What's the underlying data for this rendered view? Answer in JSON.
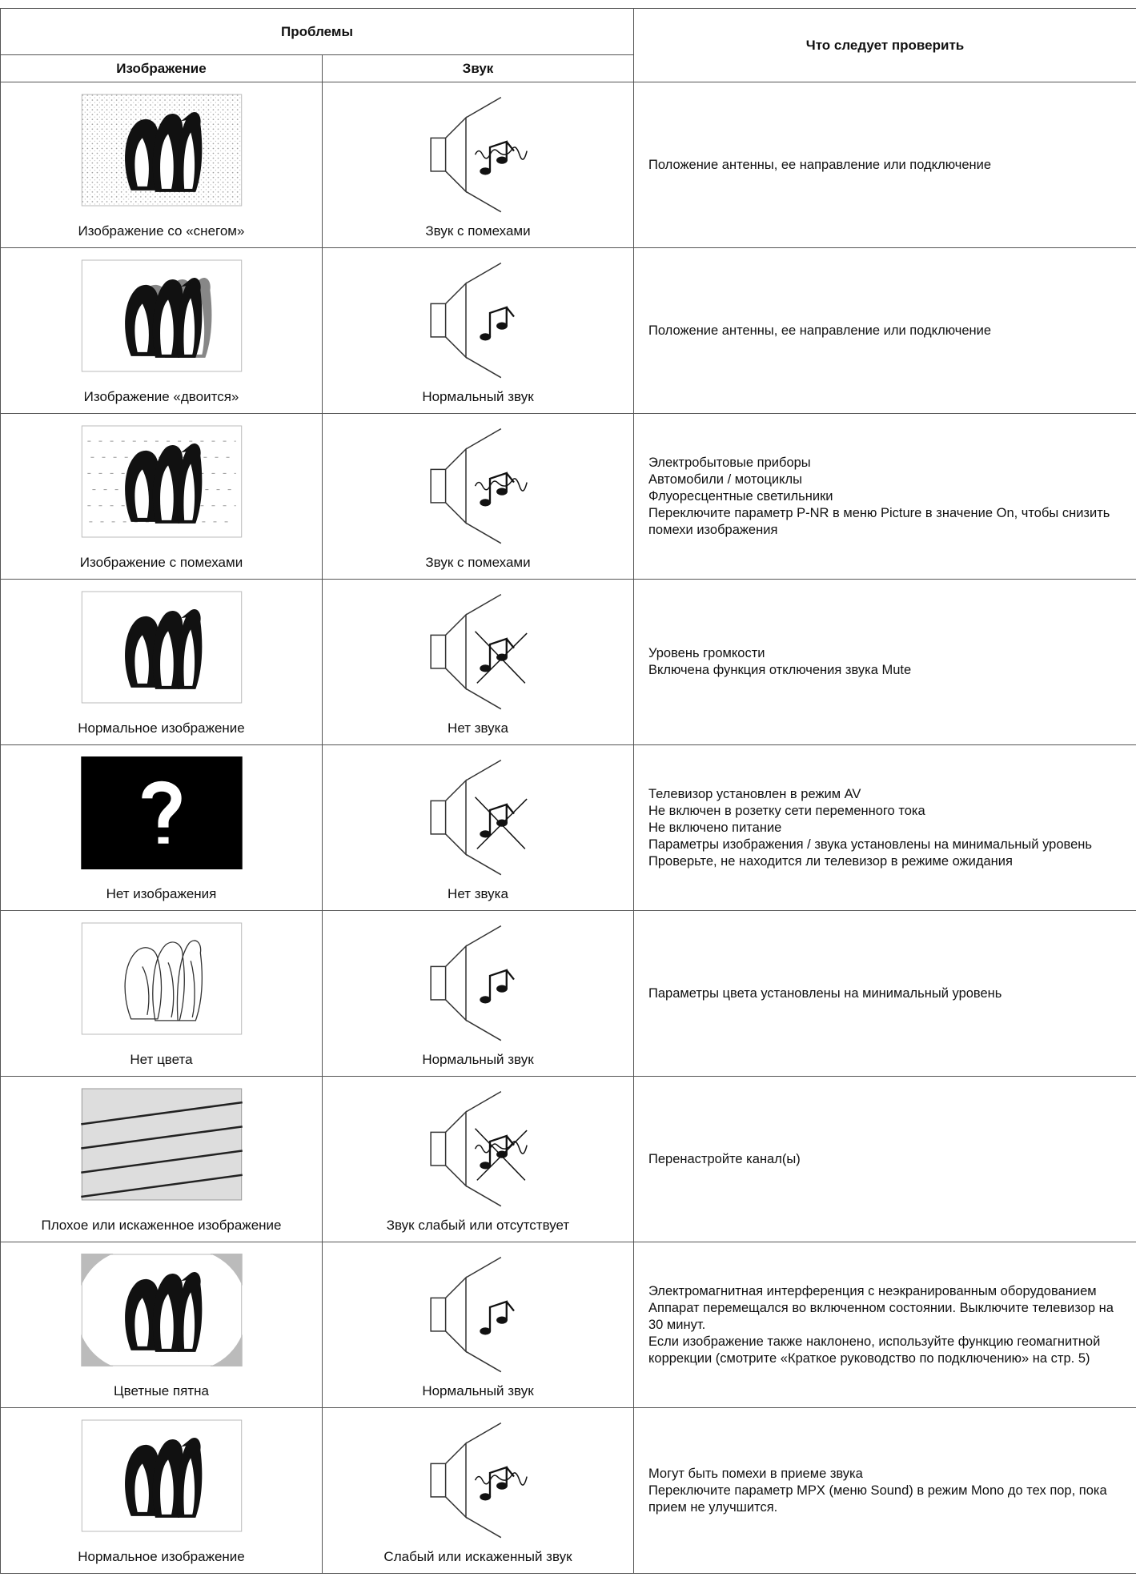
{
  "header": {
    "title": "Проблемы",
    "picture": "Изображение",
    "sound": "Звук",
    "check": "Что следует проверить"
  },
  "rows": [
    {
      "picture": "Изображение со «снегом»",
      "sound": "Звук с помехами",
      "checks": [
        "Положение антенны, ее направление или подключение"
      ]
    },
    {
      "picture": "Изображение «двоится»",
      "sound": "Нормальный звук",
      "checks": [
        "Положение антенны, ее направление или подключение"
      ]
    },
    {
      "picture": "Изображение с помехами",
      "sound": "Звук с помехами",
      "checks": [
        "Электробытовые приборы",
        "Автомобили / мотоциклы",
        "Флуоресцентные светильники",
        "Переключите параметр P-NR в меню Picture в значение On, чтобы снизить помехи изображения"
      ]
    },
    {
      "picture": "Нормальное изображение",
      "sound": "Нет звука",
      "checks": [
        "Уровень громкости",
        "Включена функция отключения звука Mute"
      ]
    },
    {
      "picture": "Нет изображения",
      "sound": "Нет звука",
      "checks": [
        "Телевизор установлен в режим AV",
        "Не включен в розетку сети переменного тока",
        "Не включено питание",
        "Параметры изображения / звука установлены на минимальный уровень",
        "Проверьте, не находится ли телевизор в режиме ожидания"
      ]
    },
    {
      "picture": "Нет цвета",
      "sound": "Нормальный звук",
      "checks": [
        "Параметры цвета установлены на минимальный уровень"
      ]
    },
    {
      "picture": "Плохое или искаженное изображение",
      "sound": "Звук слабый или отсутствует",
      "checks": [
        "Перенастройте канал(ы)"
      ]
    },
    {
      "picture": "Цветные пятна",
      "sound": "Нормальный звук",
      "checks": [
        "Электромагнитная интерференция с неэкранированным оборудованием",
        "Аппарат перемещался во включенном состоянии. Выключите телевизор на 30 минут.",
        "Если изображение также наклонено, используйте функцию геомагнитной коррекции (смотрите «Краткое руководство по подключению» на стр. 5)"
      ]
    },
    {
      "picture": "Нормальное изображение",
      "sound": "Слабый или искаженный звук",
      "checks": [
        "Могут быть помехи в приеме звука",
        "Переключите параметр MPX (меню Sound) в режим Mono до тех пор, пока прием не улучшится."
      ]
    }
  ]
}
